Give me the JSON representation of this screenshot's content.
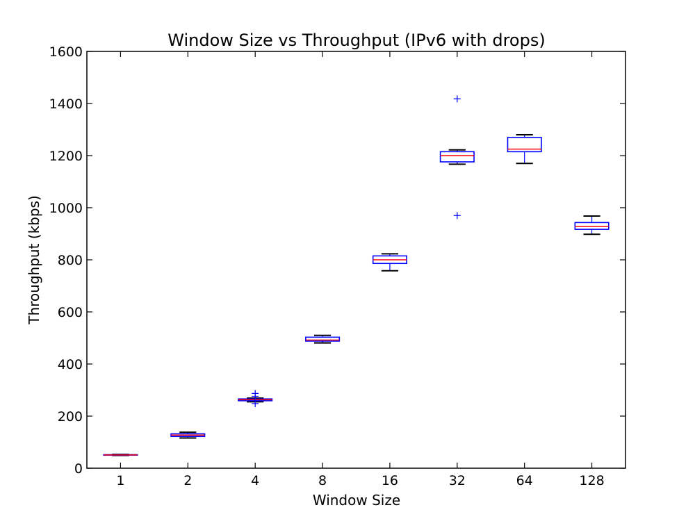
{
  "chart_data": {
    "type": "box",
    "title": "Window Size vs Throughput (IPv6 with drops)",
    "xlabel": "Window Size",
    "ylabel": "Throughput (kbps)",
    "ylim": [
      0,
      1600
    ],
    "yticks": [
      0,
      200,
      400,
      600,
      800,
      1000,
      1200,
      1400,
      1600
    ],
    "categories": [
      "1",
      "2",
      "4",
      "8",
      "16",
      "32",
      "64",
      "128"
    ],
    "boxes": [
      {
        "category": "1",
        "whisker_low": 49,
        "q1": 50,
        "median": 51,
        "q3": 52,
        "whisker_high": 53,
        "outliers": []
      },
      {
        "category": "2",
        "whisker_low": 116,
        "q1": 122,
        "median": 127,
        "q3": 132,
        "whisker_high": 138,
        "outliers": []
      },
      {
        "category": "4",
        "whisker_low": 255,
        "q1": 259,
        "median": 263,
        "q3": 266,
        "whisker_high": 269,
        "outliers": [
          287,
          276,
          248
        ]
      },
      {
        "category": "8",
        "whisker_low": 481,
        "q1": 488,
        "median": 492,
        "q3": 503,
        "whisker_high": 510,
        "outliers": []
      },
      {
        "category": "16",
        "whisker_low": 758,
        "q1": 786,
        "median": 800,
        "q3": 815,
        "whisker_high": 823,
        "outliers": []
      },
      {
        "category": "32",
        "whisker_low": 1167,
        "q1": 1176,
        "median": 1200,
        "q3": 1215,
        "whisker_high": 1222,
        "outliers": [
          1418,
          970
        ]
      },
      {
        "category": "64",
        "whisker_low": 1170,
        "q1": 1215,
        "median": 1225,
        "q3": 1270,
        "whisker_high": 1280,
        "outliers": []
      },
      {
        "category": "128",
        "whisker_low": 898,
        "q1": 917,
        "median": 928,
        "q3": 943,
        "whisker_high": 968,
        "outliers": []
      }
    ],
    "colors": {
      "box": "#0000ff",
      "median": "#ff0000",
      "whisker": "#000000",
      "outlier": "#0000ff"
    },
    "grid": false,
    "legend": "none"
  }
}
